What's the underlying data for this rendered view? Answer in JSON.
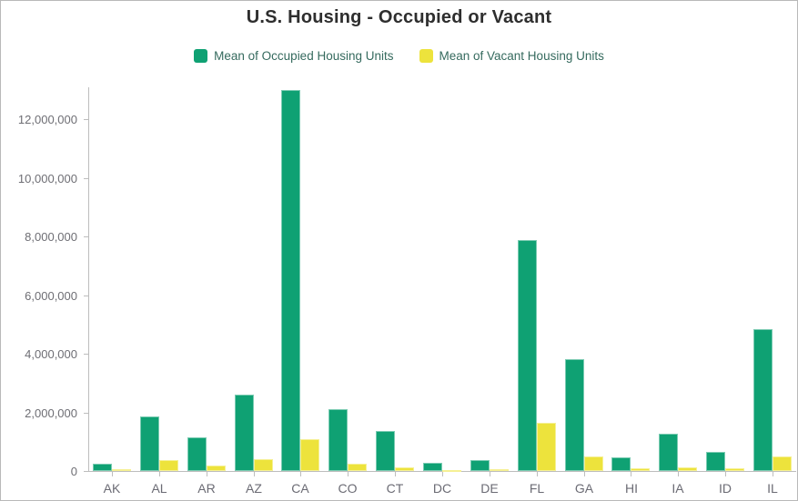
{
  "title": "U.S. Housing - Occupied or Vacant",
  "legend": {
    "items": [
      {
        "label": "Mean of Occupied Housing Units",
        "color": "#0fa173"
      },
      {
        "label": "Mean of Vacant Housing Units",
        "color": "#ede33c"
      }
    ]
  },
  "colors": {
    "occupied": "#0fa173",
    "vacant": "#ede33c",
    "axis": "#bdbdbd",
    "tick_label": "#6e6e74",
    "legend_text": "#356a5e",
    "title_text": "#2e2e2e",
    "frame_border": "#b9b9b9"
  },
  "chart_data": {
    "type": "bar",
    "title": "U.S. Housing - Occupied or Vacant",
    "xlabel": "",
    "ylabel": "",
    "grid": false,
    "legend_position": "top",
    "categories": [
      "AK",
      "AL",
      "AR",
      "AZ",
      "CA",
      "CO",
      "CT",
      "DC",
      "DE",
      "FL",
      "GA",
      "HI",
      "IA",
      "ID",
      "IL"
    ],
    "series": [
      {
        "name": "Mean of Occupied Housing Units",
        "key": "occupied",
        "color": "#0fa173",
        "values": [
          240000,
          1860000,
          1150000,
          2610000,
          13000000,
          2120000,
          1380000,
          280000,
          360000,
          7900000,
          3810000,
          470000,
          1270000,
          650000,
          4850000
        ]
      },
      {
        "name": "Mean of Vacant Housing Units",
        "key": "vacant",
        "color": "#ede33c",
        "values": [
          55000,
          360000,
          180000,
          400000,
          1100000,
          240000,
          120000,
          30000,
          60000,
          1630000,
          500000,
          90000,
          130000,
          90000,
          490000
        ]
      }
    ],
    "ylim": [
      0,
      13100000
    ],
    "yticks": [
      0,
      2000000,
      4000000,
      6000000,
      8000000,
      10000000,
      12000000
    ],
    "ytick_labels": [
      "0",
      "2,000,000",
      "4,000,000",
      "6,000,000",
      "8,000,000",
      "10,000,000",
      "12,000,000"
    ]
  }
}
